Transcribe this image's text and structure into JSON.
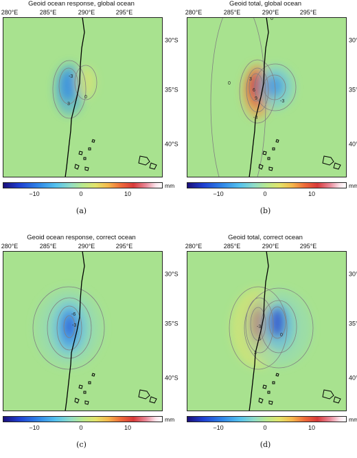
{
  "colorbar": {
    "unit": "mm",
    "ticks": [
      "−10",
      "0",
      "10"
    ],
    "range_mm": [
      -16,
      16
    ]
  },
  "lon_ticks": [
    "280°E",
    "285°E",
    "290°E",
    "295°E"
  ],
  "lat_ticks": [
    "30°S",
    "35°S",
    "40°S"
  ],
  "panels": [
    {
      "title": "Geoid ocean response, global ocean",
      "caption": "(a)",
      "contour_labels": [
        "-3",
        "3",
        "0"
      ]
    },
    {
      "title": "Geoid total, global ocean",
      "caption": "(b)",
      "contour_labels": [
        "0",
        "0",
        "3",
        "6",
        "9",
        "-3",
        "-3"
      ]
    },
    {
      "title": "Geoid ocean response, correct ocean",
      "caption": "(c)",
      "contour_labels": [
        "-6",
        "-3"
      ]
    },
    {
      "title": "Geoid total, correct ocean",
      "caption": "(d)",
      "contour_labels": [
        "3",
        "6",
        "-3",
        "0"
      ]
    }
  ],
  "colors": {
    "background_field": "#a8e28f",
    "coastline": "#000000",
    "contour": "#808080"
  }
}
